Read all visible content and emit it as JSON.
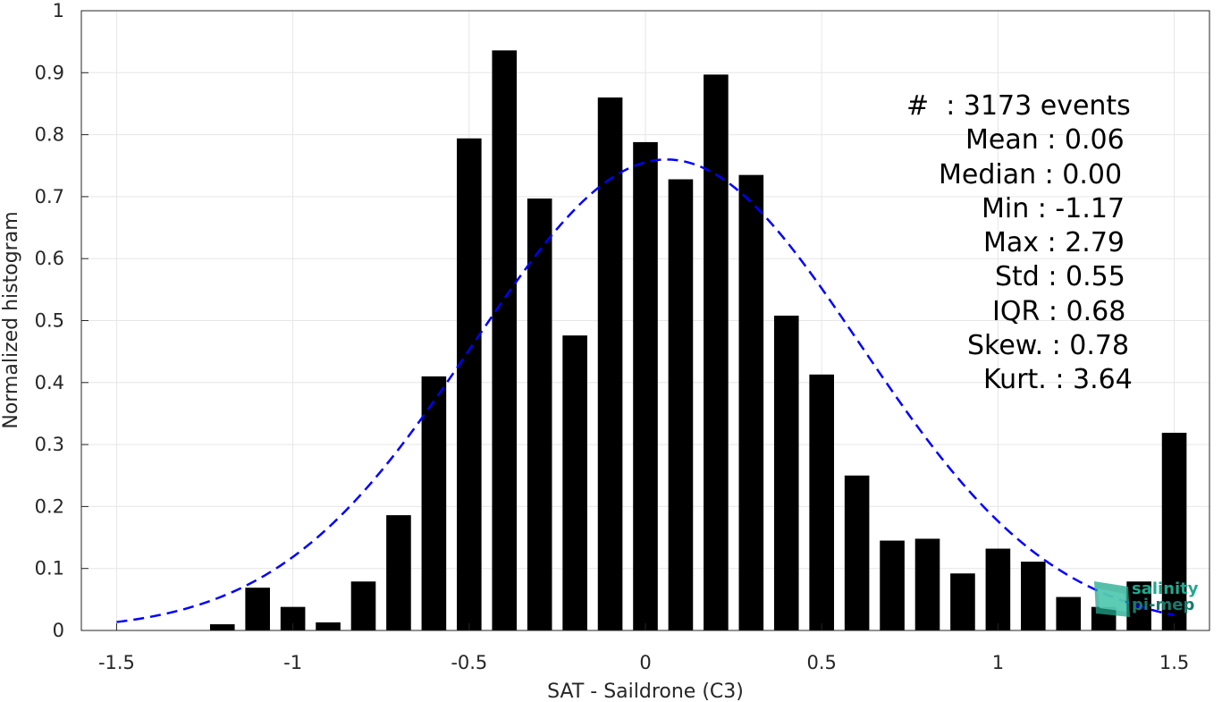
{
  "chart_data": {
    "type": "bar",
    "xlabel": "SAT - Saildrone (C3)",
    "ylabel": "Normalized histogram",
    "xlim": [
      -1.6,
      1.6
    ],
    "ylim": [
      0,
      1
    ],
    "grid": true,
    "xticks": [
      "-1.5",
      "-1",
      "-0.5",
      "0",
      "0.5",
      "1",
      "1.5"
    ],
    "xtick_values": [
      -1.5,
      -1,
      -0.5,
      0,
      0.5,
      1,
      1.5
    ],
    "yticks": [
      "0",
      "0.1",
      "0.2",
      "0.3",
      "0.4",
      "0.5",
      "0.6",
      "0.7",
      "0.8",
      "0.9",
      "1"
    ],
    "ytick_values": [
      0,
      0.1,
      0.2,
      0.3,
      0.4,
      0.5,
      0.6,
      0.7,
      0.8,
      0.9,
      1
    ],
    "bars": {
      "x": [
        -1.2,
        -1.1,
        -1.0,
        -0.9,
        -0.8,
        -0.7,
        -0.6,
        -0.5,
        -0.4,
        -0.3,
        -0.2,
        -0.1,
        0.0,
        0.1,
        0.2,
        0.3,
        0.4,
        0.5,
        0.6,
        0.7,
        0.8,
        0.9,
        1.0,
        1.1,
        1.2,
        1.3,
        1.4,
        1.5
      ],
      "values": [
        0.01,
        0.069,
        0.038,
        0.013,
        0.079,
        0.186,
        0.41,
        0.794,
        0.936,
        0.697,
        0.476,
        0.86,
        0.788,
        0.728,
        0.897,
        0.735,
        0.508,
        0.413,
        0.25,
        0.145,
        0.148,
        0.092,
        0.132,
        0.111,
        0.054,
        0.038,
        0.079,
        0.319
      ],
      "color": "#000000"
    },
    "fit_curve": {
      "style": "dashed",
      "color": "#0000ff",
      "mean": 0.06,
      "std": 0.55,
      "peak": 0.76,
      "x_range": [
        -1.5,
        1.5
      ]
    },
    "annotations": [
      "#  : 3173 events",
      "Mean : 0.06",
      "Median : 0.00",
      "Min : -1.17",
      "Max : 2.79",
      "Std : 0.55",
      "IQR : 0.68",
      "Skew. : 0.78",
      "Kurt. : 3.64"
    ]
  },
  "logo": {
    "line1": "salinity",
    "line2": "pi-mep",
    "color": "#1fa88e"
  }
}
